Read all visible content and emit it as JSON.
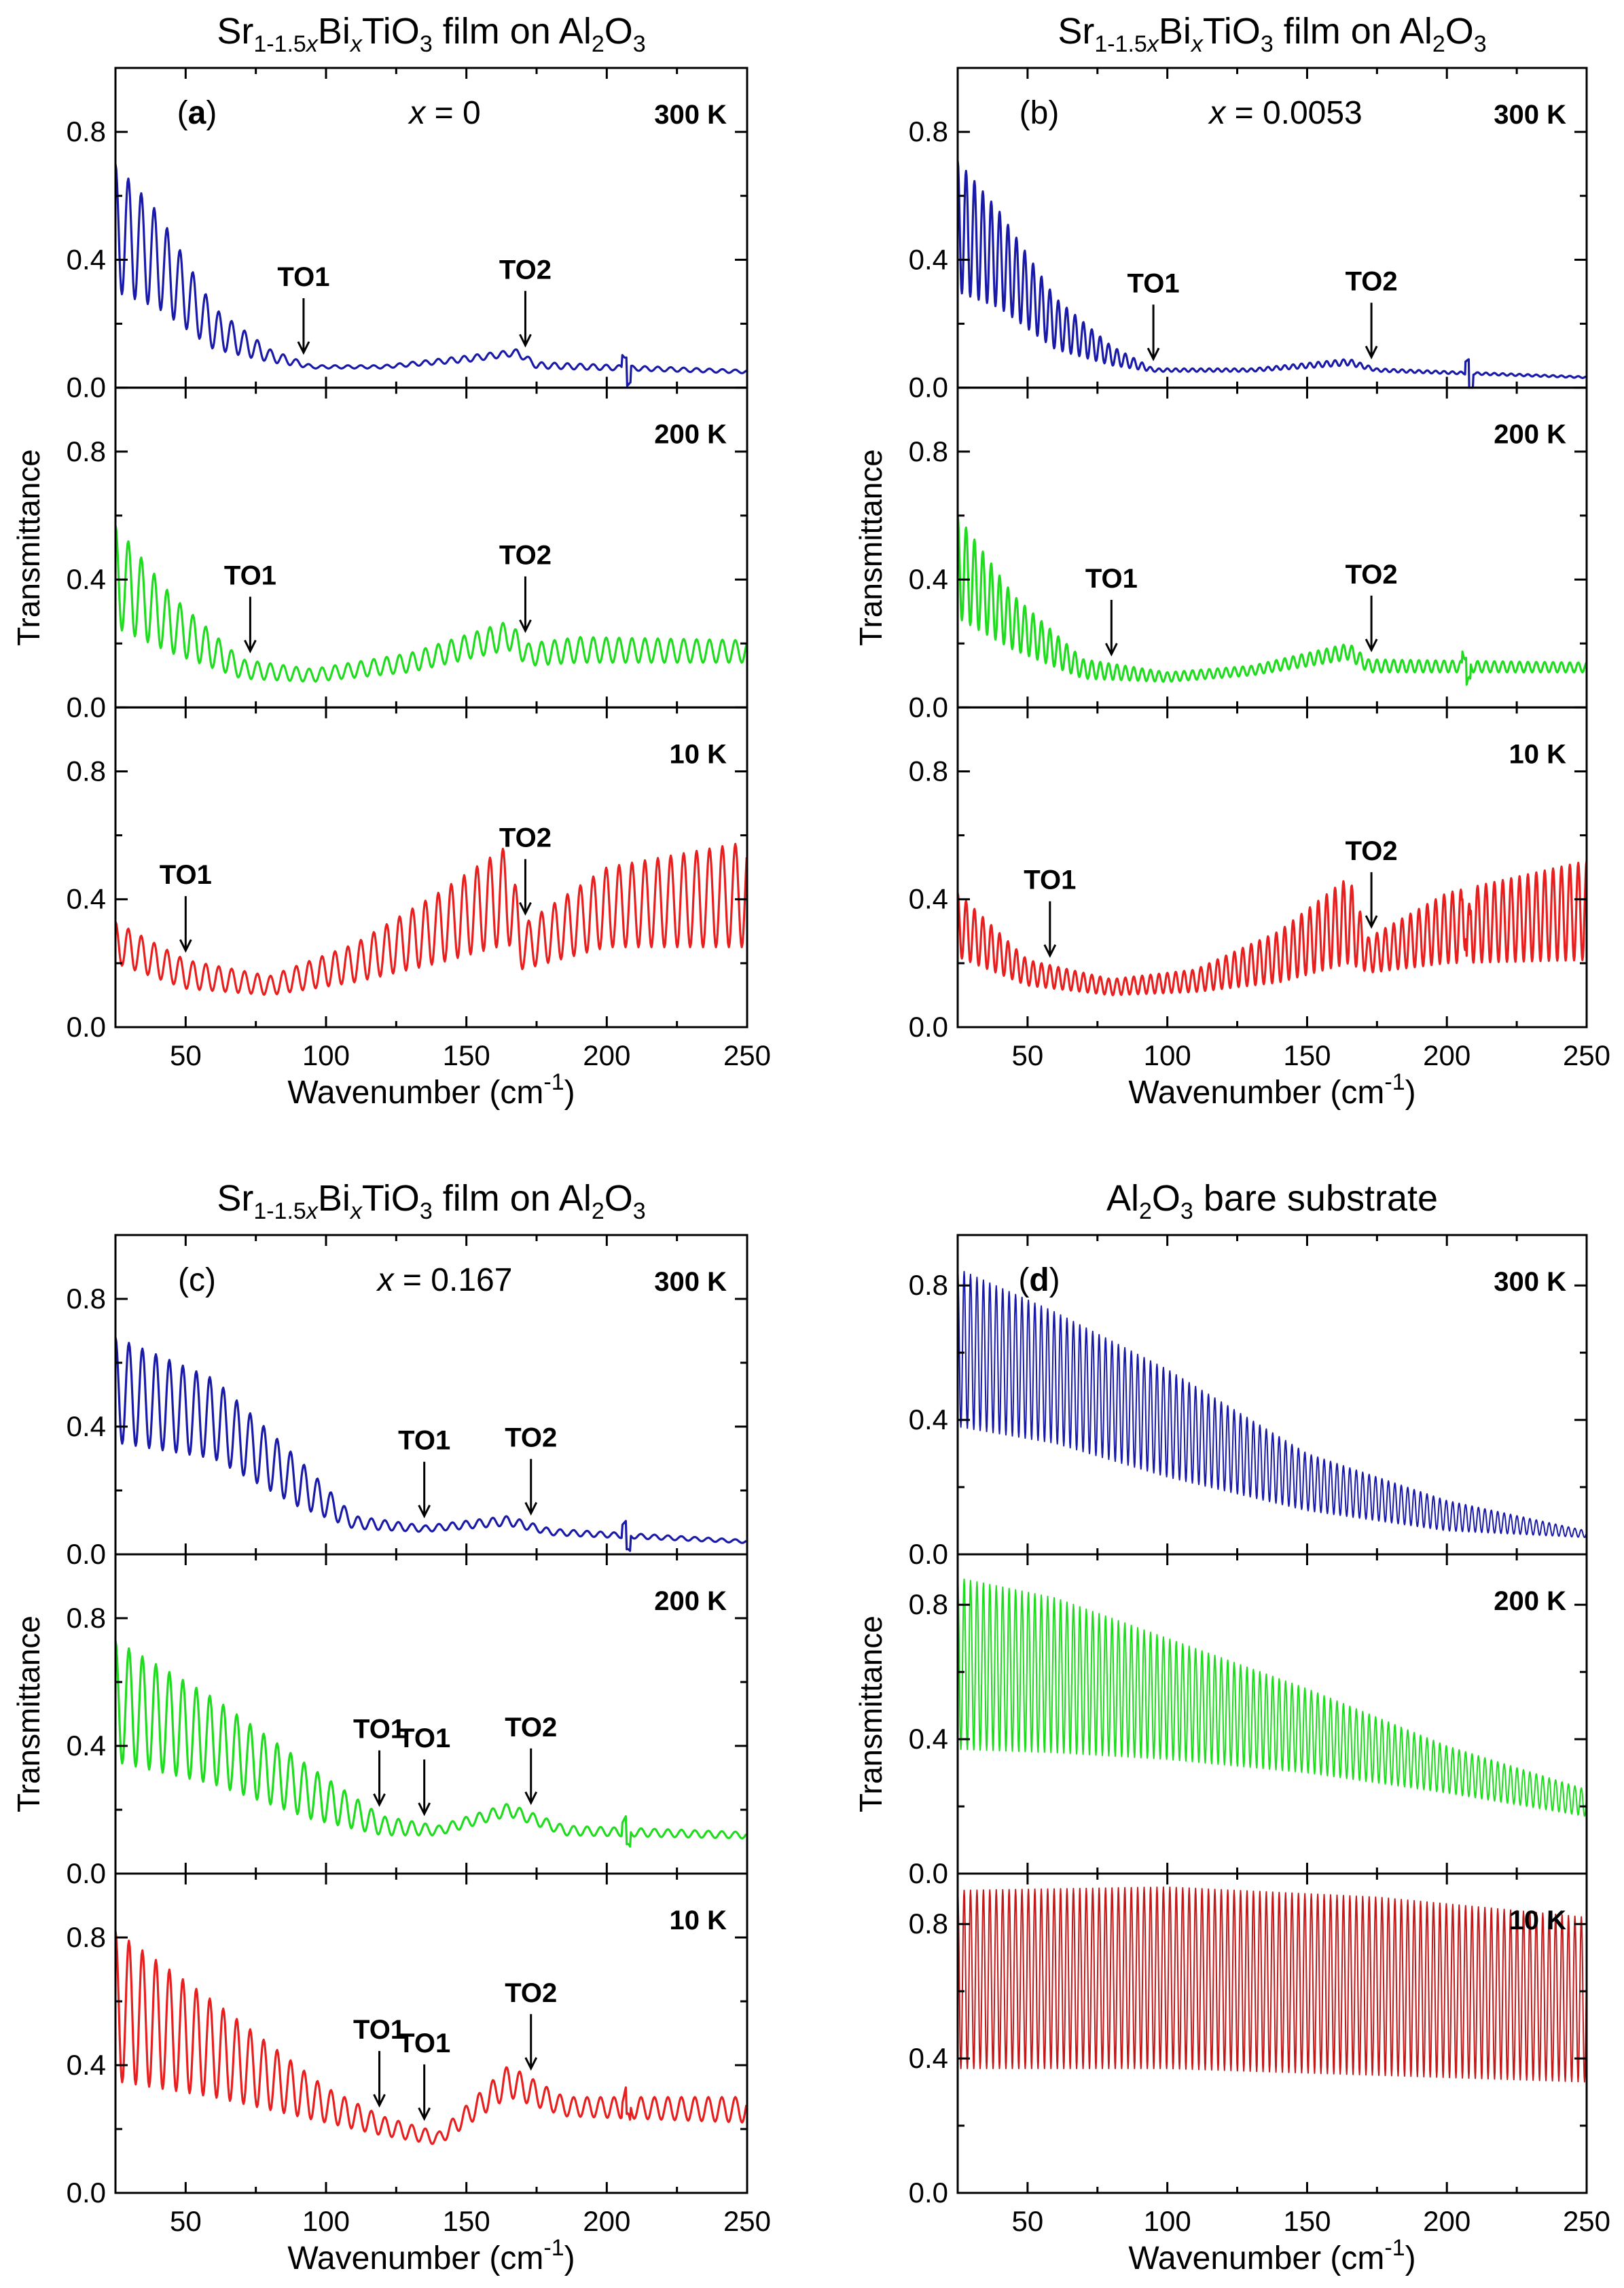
{
  "chart_data": [
    {
      "type": "line",
      "id": "a",
      "title": {
        "formula": [
          [
            "Sr",
            "n"
          ],
          [
            "1-1.5",
            "sub"
          ],
          [
            "x",
            "sub-i"
          ],
          [
            "Bi",
            "n"
          ],
          [
            "x",
            "sub-i"
          ],
          [
            "TiO",
            "n"
          ],
          [
            "3",
            "sub"
          ],
          [
            " film on Al",
            "n"
          ],
          [
            "2",
            "sub"
          ],
          [
            "O",
            "n"
          ],
          [
            "3",
            "sub"
          ]
        ]
      },
      "panel_label": "(a)",
      "x_label_text": "x = 0",
      "xlabel": "Wavenumber (cm-1)",
      "ylabel": "Transmittance",
      "xlim": [
        25,
        250
      ],
      "xticks": [
        50,
        100,
        150,
        200,
        250
      ],
      "subplots": [
        {
          "temperature": "300 K",
          "color": "#1a1aa8",
          "ylim": [
            0,
            1.0
          ],
          "yticks": [
            0.0,
            0.4,
            0.8
          ],
          "fringe_period": 4.6,
          "noise_at": 207,
          "envelope": [
            [
              25,
              0.3,
              0.7
            ],
            [
              40,
              0.25,
              0.55
            ],
            [
              60,
              0.12,
              0.25
            ],
            [
              80,
              0.08,
              0.12
            ],
            [
              95,
              0.06,
              0.07
            ],
            [
              120,
              0.06,
              0.07
            ],
            [
              150,
              0.08,
              0.1
            ],
            [
              168,
              0.1,
              0.12
            ],
            [
              175,
              0.06,
              0.08
            ],
            [
              250,
              0.045,
              0.055
            ]
          ],
          "markers": [
            {
              "label": "TO1",
              "x": 92
            },
            {
              "label": "TO2",
              "x": 171
            }
          ]
        },
        {
          "temperature": "200 K",
          "color": "#1fdc1f",
          "ylim": [
            0,
            1.0
          ],
          "yticks": [
            0.0,
            0.4,
            0.8
          ],
          "fringe_period": 4.6,
          "noise_at": null,
          "envelope": [
            [
              25,
              0.25,
              0.57
            ],
            [
              45,
              0.17,
              0.35
            ],
            [
              70,
              0.09,
              0.15
            ],
            [
              95,
              0.08,
              0.12
            ],
            [
              130,
              0.11,
              0.17
            ],
            [
              165,
              0.18,
              0.27
            ],
            [
              172,
              0.13,
              0.2
            ],
            [
              190,
              0.14,
              0.22
            ],
            [
              250,
              0.14,
              0.21
            ]
          ],
          "markers": [
            {
              "label": "TO1",
              "x": 73
            },
            {
              "label": "TO2",
              "x": 171
            }
          ]
        },
        {
          "temperature": "10 K",
          "color": "#e81f1f",
          "ylim": [
            0,
            1.0
          ],
          "yticks": [
            0.0,
            0.4,
            0.8
          ],
          "fringe_period": 4.6,
          "noise_at": null,
          "envelope": [
            [
              25,
              0.2,
              0.33
            ],
            [
              50,
              0.12,
              0.21
            ],
            [
              80,
              0.1,
              0.16
            ],
            [
              110,
              0.14,
              0.26
            ],
            [
              140,
              0.2,
              0.42
            ],
            [
              165,
              0.26,
              0.57
            ],
            [
              170,
              0.18,
              0.32
            ],
            [
              200,
              0.25,
              0.5
            ],
            [
              250,
              0.25,
              0.58
            ]
          ],
          "markers": [
            {
              "label": "TO1",
              "x": 50
            },
            {
              "label": "TO2",
              "x": 171
            }
          ]
        }
      ]
    },
    {
      "type": "line",
      "id": "b",
      "title": {
        "formula": [
          [
            "Sr",
            "n"
          ],
          [
            "1-1.5",
            "sub"
          ],
          [
            "x",
            "sub-i"
          ],
          [
            "Bi",
            "n"
          ],
          [
            "x",
            "sub-i"
          ],
          [
            "TiO",
            "n"
          ],
          [
            "3",
            "sub"
          ],
          [
            " film on Al",
            "n"
          ],
          [
            "2",
            "sub"
          ],
          [
            "O",
            "n"
          ],
          [
            "3",
            "sub"
          ]
        ]
      },
      "panel_label": "(b)",
      "x_label_text": "x = 0.0053",
      "xlabel": "Wavenumber (cm-1)",
      "ylabel": "Transmittance",
      "xlim": [
        25,
        250
      ],
      "xticks": [
        50,
        100,
        150,
        200,
        250
      ],
      "subplots": [
        {
          "temperature": "300 K",
          "color": "#1a1aa8",
          "ylim": [
            0,
            1.0
          ],
          "yticks": [
            0.0,
            0.4,
            0.8
          ],
          "fringe_period": 3.0,
          "noise_at": 208,
          "envelope": [
            [
              25,
              0.3,
              0.71
            ],
            [
              40,
              0.25,
              0.55
            ],
            [
              60,
              0.12,
              0.28
            ],
            [
              80,
              0.07,
              0.13
            ],
            [
              95,
              0.05,
              0.06
            ],
            [
              130,
              0.05,
              0.06
            ],
            [
              165,
              0.07,
              0.09
            ],
            [
              175,
              0.05,
              0.06
            ],
            [
              250,
              0.03,
              0.035
            ]
          ],
          "markers": [
            {
              "label": "TO1",
              "x": 95
            },
            {
              "label": "TO2",
              "x": 173
            }
          ]
        },
        {
          "temperature": "200 K",
          "color": "#1fdc1f",
          "ylim": [
            0,
            1.0
          ],
          "yticks": [
            0.0,
            0.4,
            0.8
          ],
          "fringe_period": 3.0,
          "noise_at": 207,
          "envelope": [
            [
              25,
              0.28,
              0.6
            ],
            [
              45,
              0.18,
              0.35
            ],
            [
              70,
              0.09,
              0.15
            ],
            [
              100,
              0.08,
              0.11
            ],
            [
              130,
              0.1,
              0.13
            ],
            [
              165,
              0.15,
              0.2
            ],
            [
              172,
              0.11,
              0.15
            ],
            [
              250,
              0.11,
              0.14
            ]
          ],
          "markers": [
            {
              "label": "TO1",
              "x": 80
            },
            {
              "label": "TO2",
              "x": 173
            }
          ]
        },
        {
          "temperature": "10 K",
          "color": "#e81f1f",
          "ylim": [
            0,
            1.0
          ],
          "yticks": [
            0.0,
            0.4,
            0.8
          ],
          "fringe_period": 3.0,
          "noise_at": 207,
          "envelope": [
            [
              25,
              0.22,
              0.42
            ],
            [
              50,
              0.13,
              0.21
            ],
            [
              80,
              0.1,
              0.15
            ],
            [
              110,
              0.11,
              0.18
            ],
            [
              140,
              0.14,
              0.3
            ],
            [
              165,
              0.2,
              0.47
            ],
            [
              172,
              0.17,
              0.28
            ],
            [
              200,
              0.2,
              0.42
            ],
            [
              250,
              0.21,
              0.52
            ]
          ],
          "markers": [
            {
              "label": "TO1",
              "x": 58
            },
            {
              "label": "TO2",
              "x": 173
            }
          ]
        }
      ]
    },
    {
      "type": "line",
      "id": "c",
      "title": {
        "formula": [
          [
            "Sr",
            "n"
          ],
          [
            "1-1.5",
            "sub"
          ],
          [
            "x",
            "sub-i"
          ],
          [
            "Bi",
            "n"
          ],
          [
            "x",
            "sub-i"
          ],
          [
            "TiO",
            "n"
          ],
          [
            "3",
            "sub"
          ],
          [
            " film on Al",
            "n"
          ],
          [
            "2",
            "sub"
          ],
          [
            "O",
            "n"
          ],
          [
            "3",
            "sub"
          ]
        ]
      },
      "panel_label": "(c)",
      "x_label_text": "x = 0.167",
      "xlabel": "Wavenumber (cm-1)",
      "ylabel": "Transmittance",
      "xlim": [
        25,
        250
      ],
      "xticks": [
        50,
        100,
        150,
        200,
        250
      ],
      "subplots": [
        {
          "temperature": "300 K",
          "color": "#1a1aa8",
          "ylim": [
            0,
            1.0
          ],
          "yticks": [
            0.0,
            0.4,
            0.8
          ],
          "fringe_period": 4.8,
          "noise_at": 207,
          "envelope": [
            [
              25,
              0.35,
              0.68
            ],
            [
              60,
              0.3,
              0.55
            ],
            [
              90,
              0.15,
              0.3
            ],
            [
              110,
              0.08,
              0.12
            ],
            [
              135,
              0.07,
              0.09
            ],
            [
              165,
              0.09,
              0.12
            ],
            [
              180,
              0.06,
              0.08
            ],
            [
              250,
              0.035,
              0.045
            ]
          ],
          "markers": [
            {
              "label": "TO1",
              "x": 135
            },
            {
              "label": "TO2",
              "x": 173
            }
          ]
        },
        {
          "temperature": "200 K",
          "color": "#1fdc1f",
          "ylim": [
            0,
            1.0
          ],
          "yticks": [
            0.0,
            0.4,
            0.8
          ],
          "fringe_period": 4.8,
          "noise_at": 207,
          "envelope": [
            [
              25,
              0.35,
              0.73
            ],
            [
              60,
              0.28,
              0.55
            ],
            [
              95,
              0.17,
              0.33
            ],
            [
              120,
              0.12,
              0.18
            ],
            [
              140,
              0.12,
              0.15
            ],
            [
              165,
              0.18,
              0.22
            ],
            [
              185,
              0.12,
              0.15
            ],
            [
              250,
              0.11,
              0.13
            ]
          ],
          "markers": [
            {
              "label": "TO1",
              "x": 119
            },
            {
              "label": "TO1",
              "x": 135
            },
            {
              "label": "TO2",
              "x": 173
            }
          ]
        },
        {
          "temperature": "10 K",
          "color": "#e81f1f",
          "ylim": [
            0,
            1.0
          ],
          "yticks": [
            0.0,
            0.4,
            0.8
          ],
          "fringe_period": 4.8,
          "noise_at": 207,
          "envelope": [
            [
              25,
              0.35,
              0.82
            ],
            [
              60,
              0.3,
              0.6
            ],
            [
              100,
              0.22,
              0.33
            ],
            [
              120,
              0.18,
              0.24
            ],
            [
              140,
              0.15,
              0.19
            ],
            [
              165,
              0.3,
              0.4
            ],
            [
              185,
              0.24,
              0.3
            ],
            [
              250,
              0.22,
              0.3
            ]
          ],
          "markers": [
            {
              "label": "TO1",
              "x": 119
            },
            {
              "label": "TO1",
              "x": 135
            },
            {
              "label": "TO2",
              "x": 173
            }
          ]
        }
      ]
    },
    {
      "type": "line",
      "id": "d",
      "title": {
        "formula": [
          [
            "Al",
            "n"
          ],
          [
            "2",
            "sub"
          ],
          [
            "O",
            "n"
          ],
          [
            "3",
            "sub"
          ],
          [
            " bare substrate",
            "n"
          ]
        ]
      },
      "panel_label": "(d)",
      "x_label_text": "",
      "xlabel": "Wavenumber (cm-1)",
      "ylabel": "Transmittance",
      "xlim": [
        25,
        250
      ],
      "xticks": [
        50,
        100,
        150,
        200,
        250
      ],
      "subplots": [
        {
          "temperature": "300 K",
          "color": "#1a1aa8",
          "ylim": [
            0,
            0.95
          ],
          "yticks": [
            0.0,
            0.4,
            0.8
          ],
          "fringe_period": 2.3,
          "noise_at": null,
          "thin": true,
          "envelope": [
            [
              25,
              0.38,
              0.85
            ],
            [
              60,
              0.33,
              0.72
            ],
            [
              100,
              0.23,
              0.55
            ],
            [
              150,
              0.13,
              0.3
            ],
            [
              200,
              0.07,
              0.16
            ],
            [
              250,
              0.05,
              0.07
            ]
          ],
          "markers": []
        },
        {
          "temperature": "200 K",
          "color": "#1fdc1f",
          "ylim": [
            0,
            0.95
          ],
          "yticks": [
            0.0,
            0.4,
            0.8
          ],
          "fringe_period": 2.3,
          "noise_at": null,
          "thin": true,
          "envelope": [
            [
              25,
              0.37,
              0.88
            ],
            [
              60,
              0.36,
              0.82
            ],
            [
              100,
              0.34,
              0.7
            ],
            [
              150,
              0.3,
              0.55
            ],
            [
              200,
              0.24,
              0.38
            ],
            [
              250,
              0.17,
              0.25
            ]
          ],
          "markers": []
        },
        {
          "temperature": "10 K",
          "color": "#c21a1a",
          "ylim": [
            0,
            0.95
          ],
          "yticks": [
            0.0,
            0.4,
            0.8
          ],
          "fringe_period": 2.3,
          "noise_at": null,
          "thin": true,
          "envelope": [
            [
              25,
              0.37,
              0.9
            ],
            [
              100,
              0.37,
              0.91
            ],
            [
              175,
              0.35,
              0.88
            ],
            [
              250,
              0.33,
              0.82
            ]
          ],
          "markers": []
        }
      ]
    }
  ]
}
